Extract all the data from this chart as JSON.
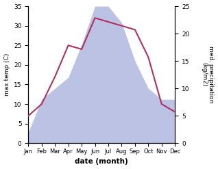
{
  "months": [
    "Jan",
    "Feb",
    "Mar",
    "Apr",
    "May",
    "Jun",
    "Jul",
    "Aug",
    "Sep",
    "Oct",
    "Nov",
    "Dec"
  ],
  "max_temp": [
    7,
    10,
    17,
    25,
    24,
    32,
    31,
    30,
    29,
    22,
    10,
    8
  ],
  "precipitation": [
    2,
    8,
    10,
    12,
    18,
    25,
    25,
    22,
    15,
    10,
    8,
    8
  ],
  "temp_color": "#b03060",
  "precip_color": "#b0b8e0",
  "left_ylim": [
    0,
    35
  ],
  "right_ylim": [
    0,
    25
  ],
  "left_yticks": [
    0,
    5,
    10,
    15,
    20,
    25,
    30,
    35
  ],
  "right_yticks": [
    0,
    5,
    10,
    15,
    20,
    25
  ],
  "xlabel": "date (month)",
  "ylabel_left": "max temp (C)",
  "ylabel_right": "med. precipitation\n(kg/m2)",
  "background_color": "#ffffff"
}
